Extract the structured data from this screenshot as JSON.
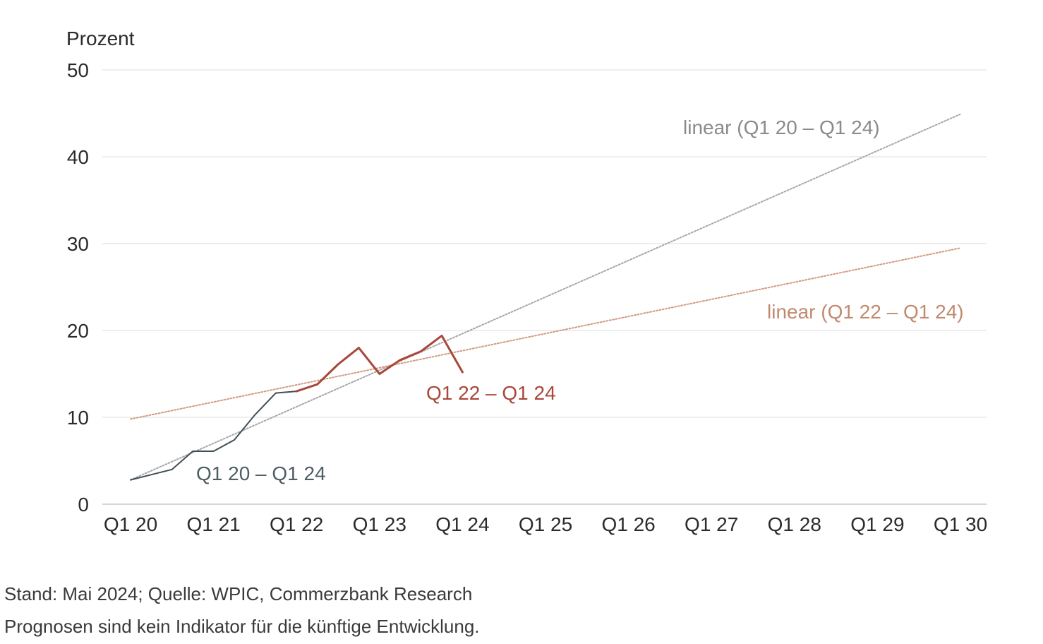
{
  "chart_data": {
    "type": "line",
    "ylabel": "Prozent",
    "ylim": [
      0,
      50
    ],
    "yticks": [
      "0",
      "10",
      "20",
      "30",
      "40",
      "50"
    ],
    "categories": [
      "Q1 20",
      "Q1 21",
      "Q1 22",
      "Q1 23",
      "Q1 24",
      "Q1 25",
      "Q1 26",
      "Q1 27",
      "Q1 28",
      "Q1 29",
      "Q1 30"
    ],
    "grid": true,
    "series": [
      {
        "name": "Q1 20 – Q1 24",
        "color": "#3f4f55",
        "style": "solid",
        "x": [
          0,
          0.25,
          0.5,
          0.75,
          1.0,
          1.25,
          1.5,
          1.75,
          2.0
        ],
        "y": [
          2.8,
          3.4,
          4.0,
          6.1,
          6.1,
          7.4,
          10.3,
          12.8,
          13.0
        ]
      },
      {
        "name": "Q1 22 – Q1 24",
        "color": "#a8473a",
        "style": "solid",
        "x": [
          2.0,
          2.25,
          2.5,
          2.75,
          3.0,
          3.25,
          3.5,
          3.75,
          4.0
        ],
        "y": [
          13.0,
          13.8,
          16.1,
          18.0,
          15.0,
          16.6,
          17.6,
          19.4,
          15.2
        ]
      },
      {
        "name": "linear (Q1 20 – Q1 24)",
        "color": "#a7a7a7",
        "style": "dotted",
        "x": [
          0,
          10
        ],
        "y": [
          2.8,
          44.9
        ]
      },
      {
        "name": "linear (Q1 22 – Q1 24)",
        "color": "#d29a82",
        "style": "dotted",
        "x": [
          0,
          10
        ],
        "y": [
          9.8,
          29.5
        ]
      }
    ],
    "annotations": [
      {
        "text": "Q1 20 – Q1 24",
        "color": "#4d5e64"
      },
      {
        "text": "Q1 22 – Q1 24",
        "color": "#a8473a"
      },
      {
        "text": "linear (Q1 20 – Q1 24)",
        "color": "#8a8a8a"
      },
      {
        "text": "linear (Q1 22 – Q1 24)",
        "color": "#c08a70"
      }
    ]
  },
  "footer": {
    "source": "Stand: Mai 2024; Quelle: WPIC, Commerzbank Research",
    "disclaimer": "Prognosen sind kein Indikator für die künftige Entwicklung."
  }
}
